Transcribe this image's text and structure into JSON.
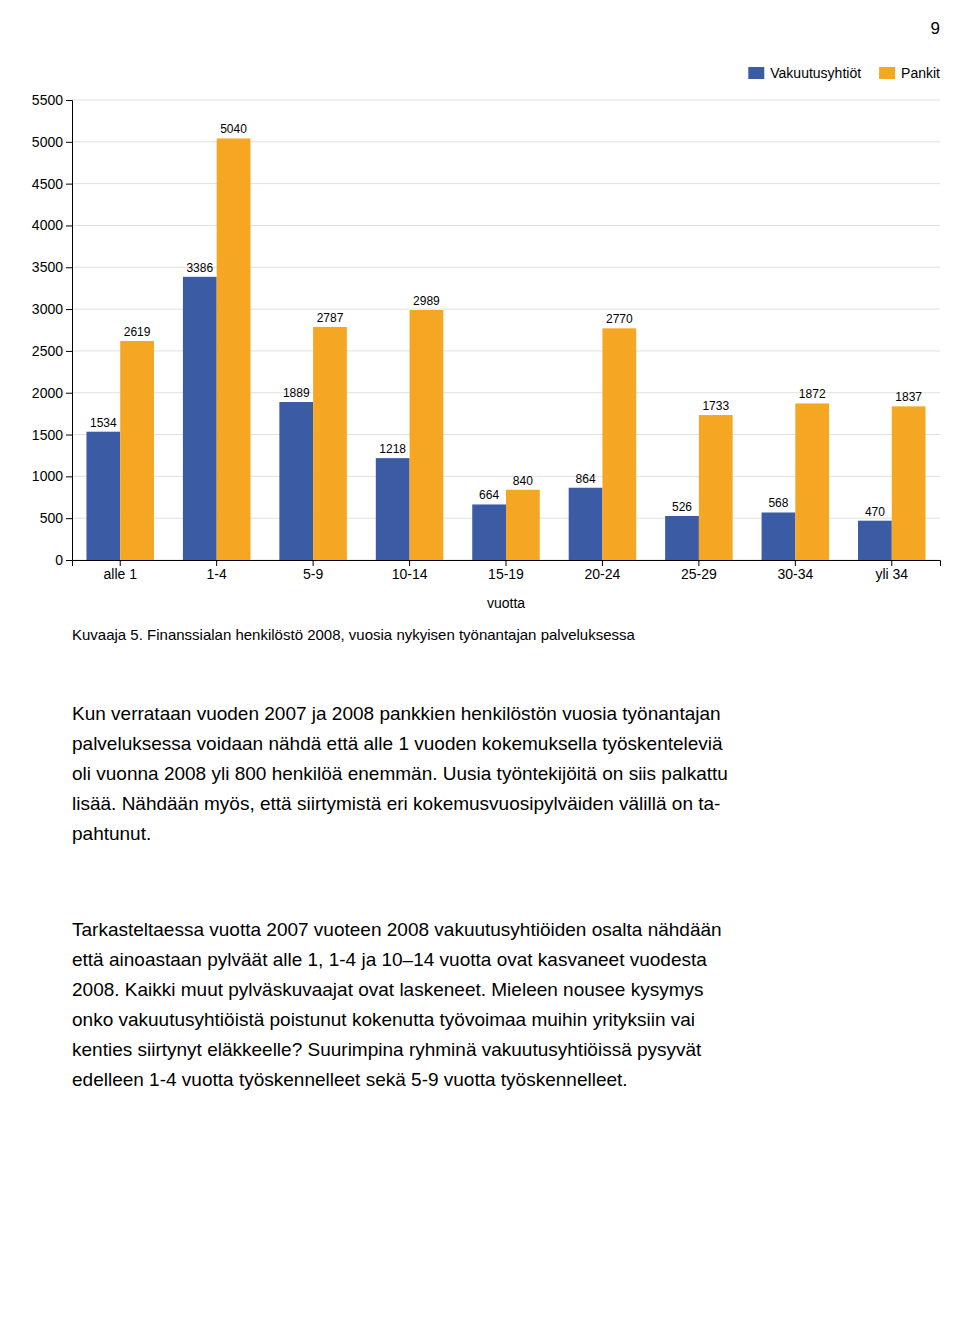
{
  "chart_data": {
    "type": "bar",
    "xlabel": "vuotta",
    "categories": [
      "alle 1",
      "1-4",
      "5-9",
      "10-14",
      "15-19",
      "20-24",
      "25-29",
      "30-34",
      "yli 34"
    ],
    "series": [
      {
        "name": "Vakuutusyhtiöt",
        "color": "#3B5BA5",
        "values": [
          1534,
          3386,
          1889,
          1218,
          664,
          864,
          526,
          568,
          470
        ]
      },
      {
        "name": "Pankit",
        "color": "#F5A623",
        "values": [
          2619,
          5040,
          2787,
          2989,
          840,
          2770,
          1733,
          1872,
          1837
        ]
      }
    ],
    "ylim": [
      0,
      5500
    ],
    "yticks": [
      0,
      500,
      1000,
      1500,
      2000,
      2500,
      3000,
      3500,
      4000,
      4500,
      5000,
      5500
    ],
    "grid": true,
    "legend": "upper right",
    "data_labels": true
  },
  "page": {
    "page_number": "9",
    "caption": "Kuvaaja 5. Finanssialan henkilöstö 2008, vuosia nykyisen työnantajan palveluksessa",
    "paragraphs": [
      [
        "Kun verrataan vuoden 2007 ja 2008 pankkien henkilöstön vuosia työnantajan",
        "palveluksessa voidaan nähdä että alle 1 vuoden kokemuksella työskenteleviä",
        "oli vuonna 2008 yli 800 henkilöä enemmän. Uusia työntekijöitä on siis palkattu",
        "lisää. Nähdään myös, että siirtymistä eri kokemusvuosipylväiden välillä on ta-",
        "pahtunut."
      ],
      [
        "Tarkasteltaessa vuotta 2007 vuoteen 2008 vakuutusyhtiöiden osalta nähdään",
        "että ainoastaan pylväät alle 1, 1-4 ja 10–14 vuotta ovat kasvaneet vuodesta",
        "2008. Kaikki muut pylväskuvaajat ovat laskeneet. Mieleen nousee kysymys",
        "onko vakuutusyhtiöistä poistunut kokenutta työvoimaa muihin yrityksiin vai",
        "kenties siirtynyt eläkkeelle? Suurimpina ryhminä vakuutusyhtiöissä pysyvät",
        "edelleen 1-4 vuotta työskennelleet sekä 5-9 vuotta työskennelleet."
      ]
    ]
  }
}
